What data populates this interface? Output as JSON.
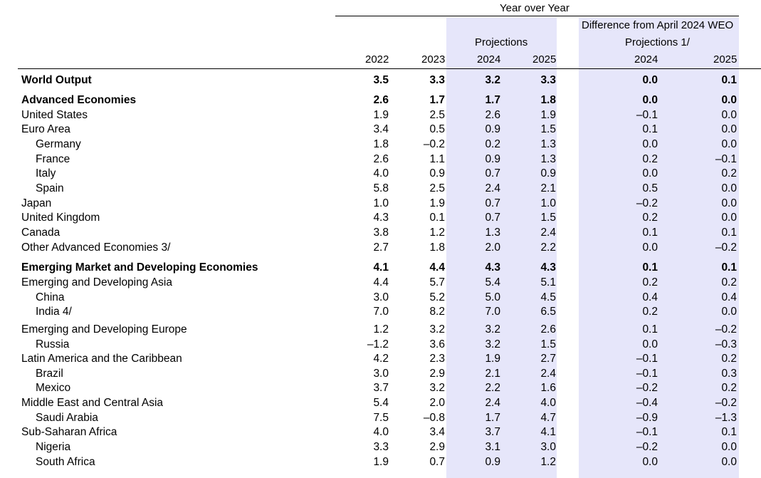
{
  "header": {
    "yoy": "Year over Year",
    "projections": "Projections",
    "difference": "Difference from April 2024 WEO",
    "projections_note": "Projections 1/",
    "years": [
      "2022",
      "2023",
      "2024",
      "2025",
      "2024",
      "2025"
    ]
  },
  "rows": [
    {
      "label": "World Output",
      "bold": true,
      "indent": false,
      "values": [
        "3.5",
        "3.3",
        "3.2",
        "3.3",
        "0.0",
        "0.1"
      ]
    },
    {
      "label": "Advanced Economies",
      "bold": true,
      "indent": false,
      "values": [
        "2.6",
        "1.7",
        "1.7",
        "1.8",
        "0.0",
        "0.0"
      ]
    },
    {
      "label": "United States",
      "bold": false,
      "indent": false,
      "values": [
        "1.9",
        "2.5",
        "2.6",
        "1.9",
        "–0.1",
        "0.0"
      ]
    },
    {
      "label": "Euro Area",
      "bold": false,
      "indent": false,
      "values": [
        "3.4",
        "0.5",
        "0.9",
        "1.5",
        "0.1",
        "0.0"
      ]
    },
    {
      "label": "Germany",
      "bold": false,
      "indent": true,
      "values": [
        "1.8",
        "–0.2",
        "0.2",
        "1.3",
        "0.0",
        "0.0"
      ]
    },
    {
      "label": "France",
      "bold": false,
      "indent": true,
      "values": [
        "2.6",
        "1.1",
        "0.9",
        "1.3",
        "0.2",
        "–0.1"
      ]
    },
    {
      "label": "Italy",
      "bold": false,
      "indent": true,
      "values": [
        "4.0",
        "0.9",
        "0.7",
        "0.9",
        "0.0",
        "0.2"
      ]
    },
    {
      "label": "Spain",
      "bold": false,
      "indent": true,
      "values": [
        "5.8",
        "2.5",
        "2.4",
        "2.1",
        "0.5",
        "0.0"
      ]
    },
    {
      "label": "Japan",
      "bold": false,
      "indent": false,
      "values": [
        "1.0",
        "1.9",
        "0.7",
        "1.0",
        "–0.2",
        "0.0"
      ]
    },
    {
      "label": "United Kingdom",
      "bold": false,
      "indent": false,
      "values": [
        "4.3",
        "0.1",
        "0.7",
        "1.5",
        "0.2",
        "0.0"
      ]
    },
    {
      "label": "Canada",
      "bold": false,
      "indent": false,
      "values": [
        "3.8",
        "1.2",
        "1.3",
        "2.4",
        "0.1",
        "0.1"
      ]
    },
    {
      "label": "Other Advanced Economies 3/",
      "bold": false,
      "indent": false,
      "values": [
        "2.7",
        "1.8",
        "2.0",
        "2.2",
        "0.0",
        "–0.2"
      ]
    },
    {
      "label": "Emerging Market and Developing Economies",
      "bold": true,
      "indent": false,
      "values": [
        "4.1",
        "4.4",
        "4.3",
        "4.3",
        "0.1",
        "0.1"
      ]
    },
    {
      "label": "Emerging and Developing Asia",
      "bold": false,
      "indent": false,
      "values": [
        "4.4",
        "5.7",
        "5.4",
        "5.1",
        "0.2",
        "0.2"
      ]
    },
    {
      "label": "China",
      "bold": false,
      "indent": true,
      "values": [
        "3.0",
        "5.2",
        "5.0",
        "4.5",
        "0.4",
        "0.4"
      ]
    },
    {
      "label": "India 4/",
      "bold": false,
      "indent": true,
      "values": [
        "7.0",
        "8.2",
        "7.0",
        "6.5",
        "0.2",
        "0.0"
      ]
    },
    {
      "label": "Emerging and Developing Europe",
      "bold": false,
      "indent": false,
      "values": [
        "1.2",
        "3.2",
        "3.2",
        "2.6",
        "0.1",
        "–0.2"
      ]
    },
    {
      "label": "Russia",
      "bold": false,
      "indent": true,
      "values": [
        "–1.2",
        "3.6",
        "3.2",
        "1.5",
        "0.0",
        "–0.3"
      ]
    },
    {
      "label": "Latin America and the Caribbean",
      "bold": false,
      "indent": false,
      "values": [
        "4.2",
        "2.3",
        "1.9",
        "2.7",
        "–0.1",
        "0.2"
      ]
    },
    {
      "label": "Brazil",
      "bold": false,
      "indent": true,
      "values": [
        "3.0",
        "2.9",
        "2.1",
        "2.4",
        "–0.1",
        "0.3"
      ]
    },
    {
      "label": "Mexico",
      "bold": false,
      "indent": true,
      "values": [
        "3.7",
        "3.2",
        "2.2",
        "1.6",
        "–0.2",
        "0.2"
      ]
    },
    {
      "label": "Middle East and Central Asia",
      "bold": false,
      "indent": false,
      "values": [
        "5.4",
        "2.0",
        "2.4",
        "4.0",
        "–0.4",
        "–0.2"
      ]
    },
    {
      "label": "Saudi Arabia",
      "bold": false,
      "indent": true,
      "values": [
        "7.5",
        "–0.8",
        "1.7",
        "4.7",
        "–0.9",
        "–1.3"
      ]
    },
    {
      "label": "Sub-Saharan Africa",
      "bold": false,
      "indent": false,
      "values": [
        "4.0",
        "3.4",
        "3.7",
        "4.1",
        "–0.1",
        "0.1"
      ]
    },
    {
      "label": "Nigeria",
      "bold": false,
      "indent": true,
      "values": [
        "3.3",
        "2.9",
        "3.1",
        "3.0",
        "–0.2",
        "0.0"
      ]
    },
    {
      "label": "South Africa",
      "bold": false,
      "indent": true,
      "values": [
        "1.9",
        "0.7",
        "0.9",
        "1.2",
        "0.0",
        "0.0"
      ]
    }
  ]
}
